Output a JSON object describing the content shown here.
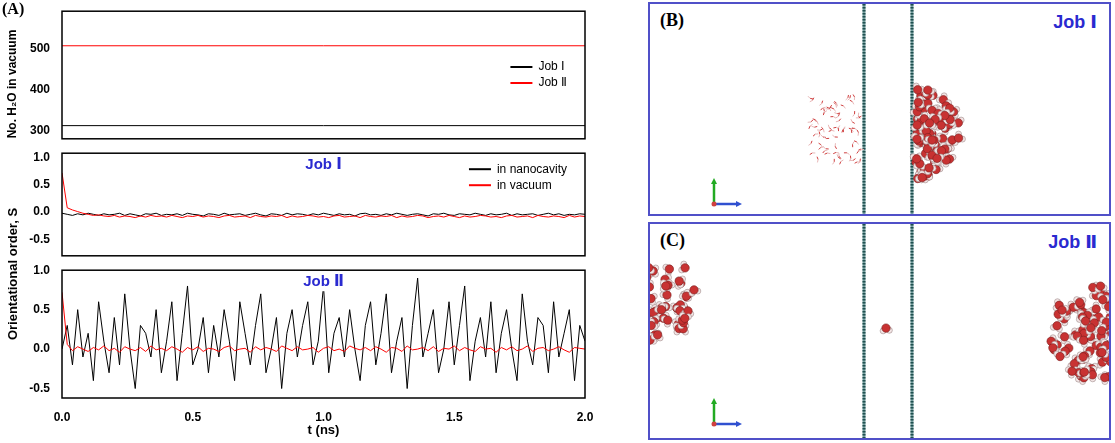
{
  "chart_data": [
    {
      "type": "line",
      "y_label": "No. H₂O in vacuum",
      "tick_labels": "y",
      "x": [
        0,
        2
      ],
      "series": [
        {
          "name": "Job Ⅰ",
          "color": "#000000",
          "values": [
            312,
            312
          ]
        },
        {
          "name": "Job Ⅱ",
          "color": "#ff0000",
          "values": [
            506,
            506
          ]
        }
      ],
      "xlim": [
        0,
        2
      ],
      "ylim": [
        280,
        590
      ],
      "yticks": [
        300,
        400,
        500
      ],
      "legend": "right"
    },
    {
      "type": "line",
      "title": "Job Ⅰ",
      "tick_labels": "y",
      "x": [
        0,
        0.02,
        0.04,
        0.06,
        0.08,
        0.1,
        0.12,
        0.14,
        0.16,
        0.18,
        0.2,
        0.22,
        0.24,
        0.26,
        0.28,
        0.3,
        0.32,
        0.34,
        0.36,
        0.38,
        0.4,
        0.42,
        0.44,
        0.46,
        0.48,
        0.5,
        0.52,
        0.54,
        0.56,
        0.58,
        0.6,
        0.62,
        0.64,
        0.66,
        0.68,
        0.7,
        0.72,
        0.74,
        0.76,
        0.78,
        0.8,
        0.82,
        0.84,
        0.86,
        0.88,
        0.9,
        0.92,
        0.94,
        0.96,
        0.98,
        1,
        1.02,
        1.04,
        1.06,
        1.08,
        1.1,
        1.12,
        1.14,
        1.16,
        1.18,
        1.2,
        1.22,
        1.24,
        1.26,
        1.28,
        1.3,
        1.32,
        1.34,
        1.36,
        1.38,
        1.4,
        1.42,
        1.44,
        1.46,
        1.48,
        1.5,
        1.52,
        1.54,
        1.56,
        1.58,
        1.6,
        1.62,
        1.64,
        1.66,
        1.68,
        1.7,
        1.72,
        1.74,
        1.76,
        1.78,
        1.8,
        1.82,
        1.84,
        1.86,
        1.88,
        1.9,
        1.92,
        1.94,
        1.96,
        1.98,
        2
      ],
      "series": [
        {
          "name": "in nanocavity",
          "color": "#000000",
          "values": [
            -0.02,
            -0.04,
            -0.06,
            -0.03,
            -0.05,
            -0.02,
            -0.04,
            -0.06,
            -0.03,
            -0.05,
            -0.04,
            -0.02,
            -0.06,
            -0.03,
            -0.05,
            -0.07,
            -0.03,
            -0.04,
            -0.02,
            -0.06,
            -0.04,
            -0.05,
            -0.03,
            -0.06,
            -0.02,
            -0.04,
            -0.05,
            -0.07,
            -0.03,
            -0.04,
            -0.06,
            -0.02,
            -0.05,
            -0.04,
            -0.03,
            -0.06,
            -0.04,
            -0.02,
            -0.05,
            -0.07,
            -0.03,
            -0.04,
            -0.06,
            -0.02,
            -0.05,
            -0.03,
            -0.04,
            -0.06,
            -0.03,
            -0.05,
            -0.02,
            -0.04,
            -0.06,
            -0.03,
            -0.05,
            -0.04,
            -0.07,
            -0.03,
            -0.02,
            -0.05,
            -0.04,
            -0.06,
            -0.03,
            -0.05,
            -0.02,
            -0.04,
            -0.06,
            -0.04,
            -0.03,
            -0.05,
            -0.07,
            -0.03,
            -0.04,
            -0.02,
            -0.05,
            -0.06,
            -0.03,
            -0.04,
            -0.05,
            -0.02,
            -0.04,
            -0.06,
            -0.03,
            -0.05,
            -0.04,
            -0.02,
            -0.06,
            -0.03,
            -0.05,
            -0.04,
            -0.03,
            -0.06,
            -0.04,
            -0.02,
            -0.05,
            -0.03,
            -0.06,
            -0.04,
            -0.05,
            -0.03,
            -0.04
          ]
        },
        {
          "name": "in vacuum",
          "color": "#ff0000",
          "values": [
            0.72,
            0.08,
            0.04,
            0.01,
            -0.02,
            -0.04,
            -0.06,
            -0.05,
            -0.07,
            -0.08,
            -0.06,
            -0.09,
            -0.07,
            -0.08,
            -0.1,
            -0.07,
            -0.09,
            -0.06,
            -0.08,
            -0.07,
            -0.09,
            -0.06,
            -0.08,
            -0.1,
            -0.07,
            -0.08,
            -0.06,
            -0.09,
            -0.07,
            -0.08,
            -0.1,
            -0.07,
            -0.06,
            -0.09,
            -0.08,
            -0.07,
            -0.1,
            -0.06,
            -0.08,
            -0.09,
            -0.07,
            -0.08,
            -0.06,
            -0.1,
            -0.07,
            -0.09,
            -0.08,
            -0.06,
            -0.07,
            -0.09,
            -0.08,
            -0.1,
            -0.07,
            -0.06,
            -0.09,
            -0.08,
            -0.07,
            -0.1,
            -0.06,
            -0.08,
            -0.09,
            -0.07,
            -0.08,
            -0.06,
            -0.1,
            -0.07,
            -0.09,
            -0.08,
            -0.06,
            -0.07,
            -0.1,
            -0.08,
            -0.07,
            -0.09,
            -0.06,
            -0.08,
            -0.1,
            -0.07,
            -0.09,
            -0.08,
            -0.06,
            -0.07,
            -0.09,
            -0.08,
            -0.1,
            -0.07,
            -0.06,
            -0.09,
            -0.08,
            -0.07,
            -0.1,
            -0.06,
            -0.08,
            -0.09,
            -0.07,
            -0.08,
            -0.1,
            -0.06,
            -0.09,
            -0.07,
            -0.08
          ]
        }
      ],
      "xlim": [
        0,
        2
      ],
      "ylim": [
        -0.8,
        1.08
      ],
      "yticks": [
        -0.5,
        {
          "value": 0,
          "label": "0.0"
        },
        0.5,
        {
          "value": 1,
          "label": "1.0"
        }
      ],
      "legend": "upper right"
    },
    {
      "type": "line",
      "title": "Job Ⅱ",
      "x_label": "t (ns)",
      "x": [
        0,
        0.02,
        0.04,
        0.06,
        0.08,
        0.1,
        0.12,
        0.14,
        0.16,
        0.18,
        0.2,
        0.22,
        0.24,
        0.26,
        0.28,
        0.3,
        0.32,
        0.34,
        0.36,
        0.38,
        0.4,
        0.42,
        0.44,
        0.46,
        0.48,
        0.5,
        0.52,
        0.54,
        0.56,
        0.58,
        0.6,
        0.62,
        0.64,
        0.66,
        0.68,
        0.7,
        0.72,
        0.74,
        0.76,
        0.78,
        0.8,
        0.82,
        0.84,
        0.86,
        0.88,
        0.9,
        0.92,
        0.94,
        0.96,
        0.98,
        1,
        1.02,
        1.04,
        1.06,
        1.08,
        1.1,
        1.12,
        1.14,
        1.16,
        1.18,
        1.2,
        1.22,
        1.24,
        1.26,
        1.28,
        1.3,
        1.32,
        1.34,
        1.36,
        1.38,
        1.4,
        1.42,
        1.44,
        1.46,
        1.48,
        1.5,
        1.52,
        1.54,
        1.56,
        1.58,
        1.6,
        1.62,
        1.64,
        1.66,
        1.68,
        1.7,
        1.72,
        1.74,
        1.76,
        1.78,
        1.8,
        1.82,
        1.84,
        1.86,
        1.88,
        1.9,
        1.92,
        1.94,
        1.96,
        1.98,
        2
      ],
      "series": [
        {
          "color": "#000000",
          "values": [
            0,
            0.3,
            -0.2,
            0.5,
            -0.1,
            0.2,
            -0.4,
            0.6,
            0.1,
            -0.3,
            0.4,
            -0.2,
            0.7,
            0,
            -0.5,
            0.3,
            0.2,
            -0.1,
            0.5,
            -0.3,
            0.1,
            0.6,
            -0.4,
            0.2,
            0.8,
            -0.2,
            0,
            0.4,
            -0.3,
            0.3,
            -0.1,
            0.5,
            0.1,
            -0.4,
            0.6,
            0.2,
            -0.2,
            0.3,
            0.7,
            -0.3,
            0,
            0.4,
            -0.5,
            0.2,
            0.5,
            -0.1,
            0.3,
            0.6,
            -0.2,
            0.1,
            0.8,
            -0.3,
            0.2,
            0.4,
            -0.1,
            0.5,
            0,
            -0.4,
            0.3,
            0.6,
            -0.2,
            0.2,
            0.7,
            -0.3,
            0.1,
            0.4,
            -0.5,
            0.3,
            0.9,
            -0.1,
            0.2,
            0.5,
            -0.3,
            0,
            0.6,
            -0.2,
            0.3,
            0.8,
            -0.4,
            0.1,
            0.4,
            -0.1,
            0.6,
            -0.3,
            0.2,
            0.5,
            0,
            -0.4,
            0.7,
            0.1,
            -0.2,
            0.4,
            0.3,
            -0.3,
            0.6,
            -0.1,
            0.2,
            0.5,
            -0.4,
            0.3,
            0.1
          ]
        },
        {
          "color": "#ff0000",
          "values": [
            0.72,
            0.06,
            -0.02,
            0.03,
            0,
            -0.03,
            0.02,
            -0.01,
            0.04,
            -0.02,
            0.01,
            -0.04,
            0.03,
            0,
            -0.02,
            0.02,
            -0.03,
            0.04,
            -0.01,
            0.01,
            -0.02,
            0.03,
            0,
            -0.04,
            0.02,
            -0.01,
            0.03,
            -0.03,
            0.01,
            0,
            -0.03,
            0.02,
            0.04,
            -0.02,
            0,
            0.01,
            -0.04,
            0.03,
            -0.01,
            0.02,
            0,
            -0.03,
            0.04,
            0.01,
            -0.02,
            0.03,
            -0.01,
            0,
            0.02,
            -0.04,
            0.01,
            0.03,
            -0.02,
            0,
            -0.03,
            0.04,
            0.01,
            -0.01,
            0.02,
            -0.02,
            0.03,
            0,
            -0.04,
            0.02,
            0.01,
            -0.03,
            0.04,
            -0.01,
            0,
            0.02,
            -0.02,
            0.03,
            -0.03,
            0.01,
            0,
            0.04,
            -0.02,
            0.02,
            -0.01,
            -0.03,
            0.03,
            0,
            0.01,
            -0.04,
            0.02,
            -0.01,
            0.03,
            -0.02,
            0,
            0.04,
            -0.03,
            0.01,
            0.02,
            -0.02,
            0,
            0.03,
            -0.01,
            -0.04,
            0.02,
            0.01,
            0
          ]
        }
      ],
      "xlim": [
        0,
        2
      ],
      "ylim": [
        -0.62,
        1
      ],
      "xticks": [
        {
          "value": 0,
          "label": "0.0"
        },
        0.5,
        {
          "value": 1,
          "label": "1.0"
        },
        1.5,
        {
          "value": 2,
          "label": "2.0"
        }
      ],
      "yticks": [
        -0.5,
        {
          "value": 0,
          "label": "0.0"
        },
        0.5,
        {
          "value": 1,
          "label": "1.0"
        }
      ]
    }
  ],
  "panel_A": {
    "label": "(A)",
    "y_label": "Orientational order, S"
  },
  "panel_B": {
    "label": "(B)",
    "title": "Job Ⅰ"
  },
  "panel_C": {
    "label": "(C)",
    "title": "Job Ⅱ"
  }
}
